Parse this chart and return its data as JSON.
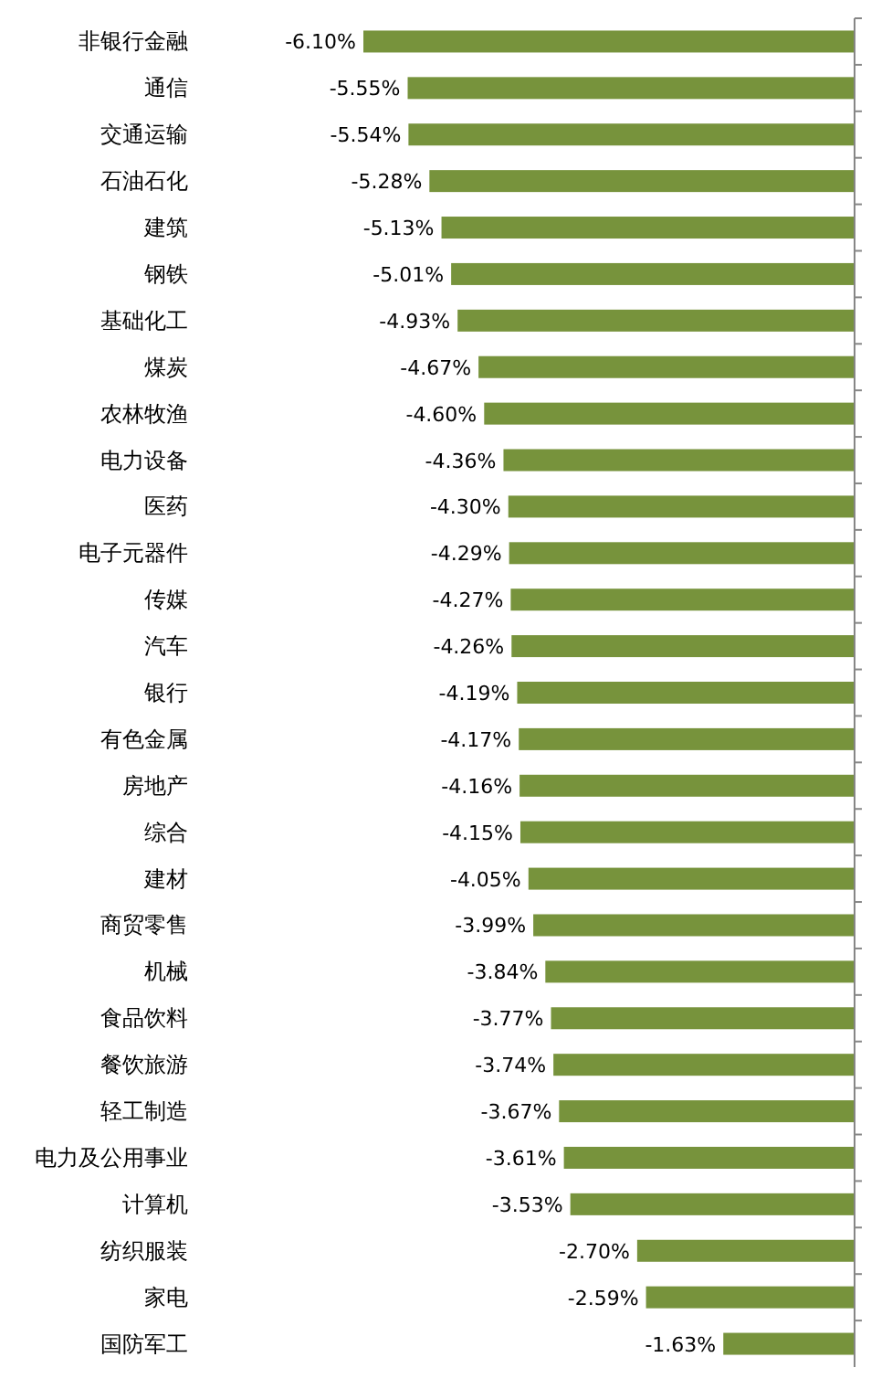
{
  "chart_data": {
    "type": "bar",
    "orientation": "horizontal",
    "categories": [
      "非银行金融",
      "通信",
      "交通运输",
      "石油石化",
      "建筑",
      "钢铁",
      "基础化工",
      "煤炭",
      "农林牧渔",
      "电力设备",
      "医药",
      "电子元器件",
      "传媒",
      "汽车",
      "银行",
      "有色金属",
      "房地产",
      "综合",
      "建材",
      "商贸零售",
      "机械",
      "食品饮料",
      "餐饮旅游",
      "轻工制造",
      "电力及公用事业",
      "计算机",
      "纺织服装",
      "家电",
      "国防军工"
    ],
    "values": [
      -6.1,
      -5.55,
      -5.54,
      -5.28,
      -5.13,
      -5.01,
      -4.93,
      -4.67,
      -4.6,
      -4.36,
      -4.3,
      -4.29,
      -4.27,
      -4.26,
      -4.19,
      -4.17,
      -4.16,
      -4.15,
      -4.05,
      -3.99,
      -3.84,
      -3.77,
      -3.74,
      -3.67,
      -3.61,
      -3.53,
      -2.7,
      -2.59,
      -1.63
    ],
    "value_labels": [
      "-6.10%",
      "-5.55%",
      "-5.54%",
      "-5.28%",
      "-5.13%",
      "-5.01%",
      "-4.93%",
      "-4.67%",
      "-4.60%",
      "-4.36%",
      "-4.30%",
      "-4.29%",
      "-4.27%",
      "-4.26%",
      "-4.19%",
      "-4.17%",
      "-4.16%",
      "-4.15%",
      "-4.05%",
      "-3.99%",
      "-3.84%",
      "-3.77%",
      "-3.74%",
      "-3.67%",
      "-3.61%",
      "-3.53%",
      "-2.70%",
      "-2.59%",
      "-1.63%"
    ],
    "color": "#77933c",
    "tick_labels": "y"
  }
}
